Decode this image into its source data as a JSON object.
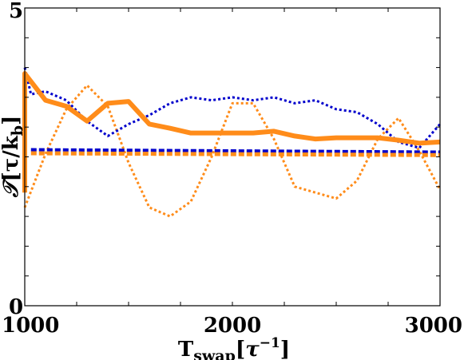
{
  "chart_data": {
    "type": "line",
    "xlabel": {
      "main": "T",
      "sub": "swap",
      "bracket_open": "[",
      "tau": "τ",
      "sup": "−1",
      "bracket_close": "]"
    },
    "ylabel": {
      "main": "𝒯",
      "bracket": "[τ/k",
      "sub": "b",
      "close": "]"
    },
    "xlim": [
      1000,
      3000
    ],
    "ylim": [
      0,
      5
    ],
    "x_ticks": [
      {
        "value": 1000,
        "label": "1000"
      },
      {
        "value": 2000,
        "label": "2000"
      },
      {
        "value": 3000,
        "label": "3000"
      }
    ],
    "y_ticks": [
      {
        "value": 0,
        "label": "0"
      },
      {
        "value": 5,
        "label": "5"
      }
    ],
    "grid": false,
    "series": [
      {
        "color": "#ff8c1a",
        "style": "dotted",
        "width": 3,
        "x": [
          1000,
          1100,
          1200,
          1300,
          1400,
          1500,
          1600,
          1700,
          1800,
          1900,
          2000,
          2100,
          2200,
          2300,
          2400,
          2500,
          2600,
          2700,
          2800,
          2900,
          3000
        ],
        "y": [
          1.65,
          2.55,
          3.3,
          3.7,
          3.35,
          2.4,
          1.65,
          1.5,
          1.75,
          2.5,
          3.4,
          3.4,
          2.8,
          2.0,
          1.9,
          1.8,
          2.1,
          2.8,
          3.15,
          2.6,
          1.95
        ]
      },
      {
        "color": "#0000cc",
        "style": "dotted",
        "width": 3,
        "x": [
          1000,
          1030,
          1100,
          1200,
          1300,
          1400,
          1500,
          1600,
          1700,
          1800,
          1900,
          2000,
          2100,
          2200,
          2300,
          2400,
          2500,
          2600,
          2700,
          2800,
          2900,
          3000
        ],
        "y": [
          4.0,
          3.55,
          3.6,
          3.45,
          3.1,
          2.85,
          3.05,
          3.2,
          3.4,
          3.5,
          3.45,
          3.5,
          3.45,
          3.5,
          3.4,
          3.45,
          3.3,
          3.25,
          3.05,
          2.75,
          2.65,
          3.05
        ]
      },
      {
        "color": "#0000cc",
        "style": "dashed",
        "width": 4,
        "x": [
          1030,
          3000
        ],
        "y": [
          2.62,
          2.58
        ]
      },
      {
        "color": "#ff8c1a",
        "style": "dashed",
        "width": 5,
        "x": [
          1030,
          3000
        ],
        "y": [
          2.56,
          2.53
        ]
      },
      {
        "color": "#ff8c1a",
        "style": "solid",
        "width": 6,
        "x": [
          1000,
          1000,
          1100,
          1200,
          1300,
          1400,
          1500,
          1600,
          1700,
          1800,
          1900,
          2000,
          2100,
          2200,
          2300,
          2400,
          2500,
          2600,
          2700,
          2800,
          2900,
          3000
        ],
        "y": [
          1.9,
          3.9,
          3.45,
          3.35,
          3.1,
          3.4,
          3.43,
          3.05,
          2.98,
          2.9,
          2.9,
          2.9,
          2.9,
          2.93,
          2.85,
          2.8,
          2.82,
          2.82,
          2.82,
          2.78,
          2.73,
          2.75
        ]
      }
    ]
  }
}
